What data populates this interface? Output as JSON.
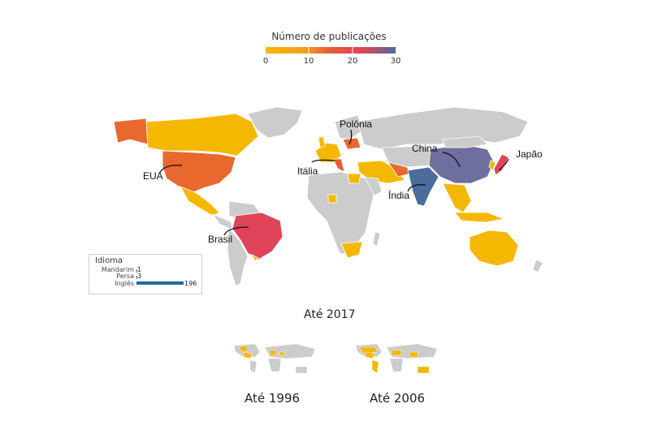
{
  "legend": {
    "title": "Número de publicações",
    "ticks": [
      "0",
      "10",
      "20",
      "30"
    ],
    "colors": [
      "#f5b800",
      "#f0a020",
      "#e8583a",
      "#e0445a",
      "#4a6d9e"
    ]
  },
  "countries": {
    "usa": "EUA",
    "brazil": "Brasil",
    "italy": "Itália",
    "poland": "Polônia",
    "china": "China",
    "india": "Índia",
    "japan": "Japão"
  },
  "language_chart": {
    "title": "Idioma",
    "rows": [
      {
        "name": "Mandarim",
        "value": 1
      },
      {
        "name": "Persa",
        "value": 3
      },
      {
        "name": "Inglês",
        "value": 196
      }
    ],
    "max_value": 196,
    "bar_color": "#1f6aa2"
  },
  "periods": {
    "main": "Até 2017",
    "small1": "Até 1996",
    "small2": "Até 2006"
  },
  "map_colors": {
    "no_data": "#cccccc",
    "low": "#f5b800",
    "usa": "#e8682e",
    "brazil": "#e0445a",
    "china": "#6e6f9e",
    "india": "#4a6d9e"
  }
}
